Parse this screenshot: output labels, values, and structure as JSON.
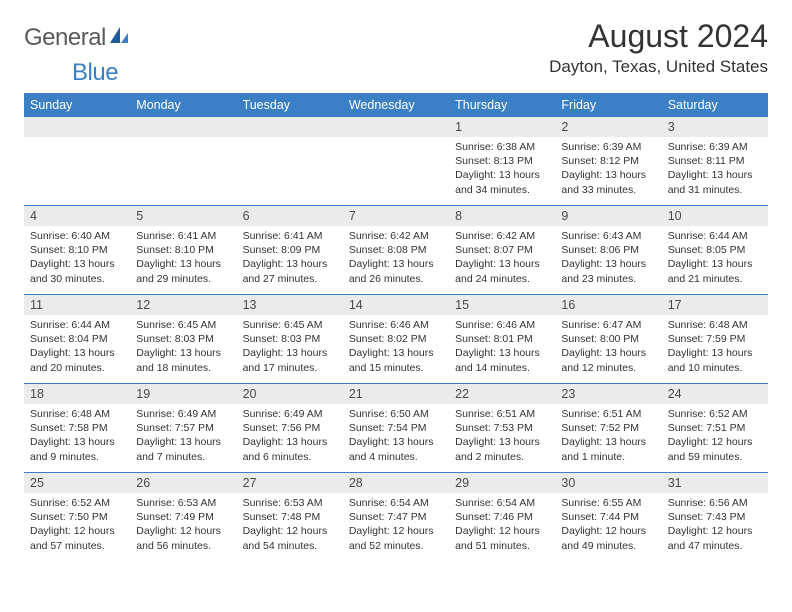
{
  "logo": {
    "text1": "General",
    "text2": "Blue"
  },
  "title": "August 2024",
  "location": "Dayton, Texas, United States",
  "colors": {
    "headerBar": "#3b7fc4",
    "dayNumBg": "#ebebeb",
    "text": "#333333",
    "page": "#ffffff",
    "logoGray": "#5a5a5a",
    "logoBlue": "#3b7fc4"
  },
  "dayNames": [
    "Sunday",
    "Monday",
    "Tuesday",
    "Wednesday",
    "Thursday",
    "Friday",
    "Saturday"
  ],
  "weeks": [
    [
      {
        "n": "",
        "lines": []
      },
      {
        "n": "",
        "lines": []
      },
      {
        "n": "",
        "lines": []
      },
      {
        "n": "",
        "lines": []
      },
      {
        "n": "1",
        "lines": [
          "Sunrise: 6:38 AM",
          "Sunset: 8:13 PM",
          "Daylight: 13 hours and 34 minutes."
        ]
      },
      {
        "n": "2",
        "lines": [
          "Sunrise: 6:39 AM",
          "Sunset: 8:12 PM",
          "Daylight: 13 hours and 33 minutes."
        ]
      },
      {
        "n": "3",
        "lines": [
          "Sunrise: 6:39 AM",
          "Sunset: 8:11 PM",
          "Daylight: 13 hours and 31 minutes."
        ]
      }
    ],
    [
      {
        "n": "4",
        "lines": [
          "Sunrise: 6:40 AM",
          "Sunset: 8:10 PM",
          "Daylight: 13 hours and 30 minutes."
        ]
      },
      {
        "n": "5",
        "lines": [
          "Sunrise: 6:41 AM",
          "Sunset: 8:10 PM",
          "Daylight: 13 hours and 29 minutes."
        ]
      },
      {
        "n": "6",
        "lines": [
          "Sunrise: 6:41 AM",
          "Sunset: 8:09 PM",
          "Daylight: 13 hours and 27 minutes."
        ]
      },
      {
        "n": "7",
        "lines": [
          "Sunrise: 6:42 AM",
          "Sunset: 8:08 PM",
          "Daylight: 13 hours and 26 minutes."
        ]
      },
      {
        "n": "8",
        "lines": [
          "Sunrise: 6:42 AM",
          "Sunset: 8:07 PM",
          "Daylight: 13 hours and 24 minutes."
        ]
      },
      {
        "n": "9",
        "lines": [
          "Sunrise: 6:43 AM",
          "Sunset: 8:06 PM",
          "Daylight: 13 hours and 23 minutes."
        ]
      },
      {
        "n": "10",
        "lines": [
          "Sunrise: 6:44 AM",
          "Sunset: 8:05 PM",
          "Daylight: 13 hours and 21 minutes."
        ]
      }
    ],
    [
      {
        "n": "11",
        "lines": [
          "Sunrise: 6:44 AM",
          "Sunset: 8:04 PM",
          "Daylight: 13 hours and 20 minutes."
        ]
      },
      {
        "n": "12",
        "lines": [
          "Sunrise: 6:45 AM",
          "Sunset: 8:03 PM",
          "Daylight: 13 hours and 18 minutes."
        ]
      },
      {
        "n": "13",
        "lines": [
          "Sunrise: 6:45 AM",
          "Sunset: 8:03 PM",
          "Daylight: 13 hours and 17 minutes."
        ]
      },
      {
        "n": "14",
        "lines": [
          "Sunrise: 6:46 AM",
          "Sunset: 8:02 PM",
          "Daylight: 13 hours and 15 minutes."
        ]
      },
      {
        "n": "15",
        "lines": [
          "Sunrise: 6:46 AM",
          "Sunset: 8:01 PM",
          "Daylight: 13 hours and 14 minutes."
        ]
      },
      {
        "n": "16",
        "lines": [
          "Sunrise: 6:47 AM",
          "Sunset: 8:00 PM",
          "Daylight: 13 hours and 12 minutes."
        ]
      },
      {
        "n": "17",
        "lines": [
          "Sunrise: 6:48 AM",
          "Sunset: 7:59 PM",
          "Daylight: 13 hours and 10 minutes."
        ]
      }
    ],
    [
      {
        "n": "18",
        "lines": [
          "Sunrise: 6:48 AM",
          "Sunset: 7:58 PM",
          "Daylight: 13 hours and 9 minutes."
        ]
      },
      {
        "n": "19",
        "lines": [
          "Sunrise: 6:49 AM",
          "Sunset: 7:57 PM",
          "Daylight: 13 hours and 7 minutes."
        ]
      },
      {
        "n": "20",
        "lines": [
          "Sunrise: 6:49 AM",
          "Sunset: 7:56 PM",
          "Daylight: 13 hours and 6 minutes."
        ]
      },
      {
        "n": "21",
        "lines": [
          "Sunrise: 6:50 AM",
          "Sunset: 7:54 PM",
          "Daylight: 13 hours and 4 minutes."
        ]
      },
      {
        "n": "22",
        "lines": [
          "Sunrise: 6:51 AM",
          "Sunset: 7:53 PM",
          "Daylight: 13 hours and 2 minutes."
        ]
      },
      {
        "n": "23",
        "lines": [
          "Sunrise: 6:51 AM",
          "Sunset: 7:52 PM",
          "Daylight: 13 hours and 1 minute."
        ]
      },
      {
        "n": "24",
        "lines": [
          "Sunrise: 6:52 AM",
          "Sunset: 7:51 PM",
          "Daylight: 12 hours and 59 minutes."
        ]
      }
    ],
    [
      {
        "n": "25",
        "lines": [
          "Sunrise: 6:52 AM",
          "Sunset: 7:50 PM",
          "Daylight: 12 hours and 57 minutes."
        ]
      },
      {
        "n": "26",
        "lines": [
          "Sunrise: 6:53 AM",
          "Sunset: 7:49 PM",
          "Daylight: 12 hours and 56 minutes."
        ]
      },
      {
        "n": "27",
        "lines": [
          "Sunrise: 6:53 AM",
          "Sunset: 7:48 PM",
          "Daylight: 12 hours and 54 minutes."
        ]
      },
      {
        "n": "28",
        "lines": [
          "Sunrise: 6:54 AM",
          "Sunset: 7:47 PM",
          "Daylight: 12 hours and 52 minutes."
        ]
      },
      {
        "n": "29",
        "lines": [
          "Sunrise: 6:54 AM",
          "Sunset: 7:46 PM",
          "Daylight: 12 hours and 51 minutes."
        ]
      },
      {
        "n": "30",
        "lines": [
          "Sunrise: 6:55 AM",
          "Sunset: 7:44 PM",
          "Daylight: 12 hours and 49 minutes."
        ]
      },
      {
        "n": "31",
        "lines": [
          "Sunrise: 6:56 AM",
          "Sunset: 7:43 PM",
          "Daylight: 12 hours and 47 minutes."
        ]
      }
    ]
  ]
}
